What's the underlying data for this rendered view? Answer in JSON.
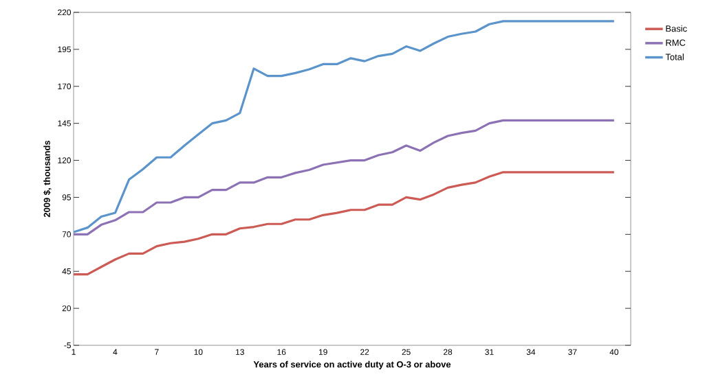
{
  "chart_data": {
    "type": "line",
    "xlabel": "Years of service on active duty at O-3 or above",
    "ylabel": "2009 $, thousands",
    "x": [
      1,
      2,
      3,
      4,
      5,
      6,
      7,
      8,
      9,
      10,
      11,
      12,
      13,
      14,
      15,
      16,
      17,
      18,
      19,
      20,
      21,
      22,
      23,
      24,
      25,
      26,
      27,
      28,
      29,
      30,
      31,
      32,
      33,
      34,
      35,
      36,
      37,
      38,
      39,
      40
    ],
    "series": [
      {
        "name": "Basic",
        "color": "#cd5b55",
        "values": [
          43,
          43,
          48,
          53,
          57,
          57,
          62,
          64,
          65,
          67,
          70,
          70,
          74,
          75,
          77,
          77,
          80,
          80,
          83,
          84.5,
          86.5,
          86.5,
          90,
          90,
          95,
          93.5,
          97,
          101.5,
          103.5,
          105,
          109,
          112,
          112,
          112,
          112,
          112,
          112,
          112,
          112,
          112
        ]
      },
      {
        "name": "RMC",
        "color": "#8c72b4",
        "values": [
          70,
          70,
          76.5,
          79.5,
          85,
          85,
          91.5,
          91.5,
          95,
          95,
          100,
          100,
          105,
          105,
          108.5,
          108.5,
          111.5,
          113.5,
          117,
          118.5,
          120,
          120,
          123.5,
          125.5,
          130,
          126.5,
          132,
          136.5,
          138.5,
          140,
          145,
          147,
          147,
          147,
          147,
          147,
          147,
          147,
          147,
          147
        ]
      },
      {
        "name": "Total",
        "color": "#5b93cb",
        "values": [
          71.5,
          74.5,
          82,
          84.5,
          107,
          114,
          122,
          122,
          130,
          137.5,
          145,
          147,
          152,
          182,
          177,
          177,
          179,
          181.5,
          185,
          185,
          189,
          187,
          190.5,
          192,
          197,
          194,
          199,
          203.5,
          205.5,
          207,
          212,
          214,
          214,
          214,
          214,
          214,
          214,
          214,
          214,
          214
        ]
      }
    ],
    "xlim": [
      1,
      41.2
    ],
    "ylim": [
      -5,
      220
    ],
    "xticks": [
      1,
      4,
      7,
      10,
      13,
      16,
      19,
      22,
      25,
      28,
      31,
      34,
      37,
      40
    ],
    "yticks": [
      -5,
      20,
      45,
      70,
      95,
      120,
      145,
      170,
      195,
      220
    ],
    "grid": false,
    "legend": "right",
    "marker": "none",
    "line_style": "solid"
  }
}
